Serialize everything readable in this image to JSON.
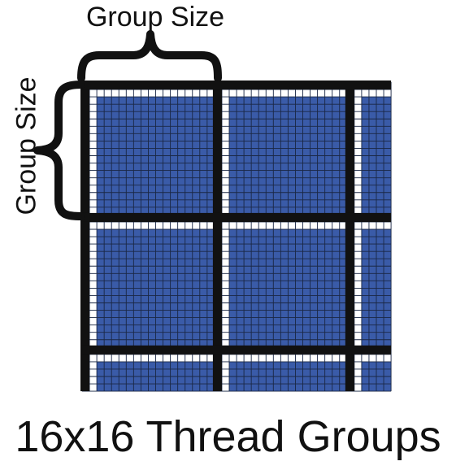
{
  "labels": {
    "top": "Group Size",
    "left": "Group Size",
    "caption": "16x16 Thread Groups"
  },
  "grid": {
    "columns": 42,
    "rows": 42,
    "group_size": 16,
    "padding_cells": 2,
    "full_groups_x": 2,
    "full_groups_y": 2
  },
  "colors": {
    "group_fill": "#3a5ba8",
    "padding_fill": "#ffffff",
    "boundary": "#111111",
    "cell_line": "#1a2744",
    "ink": "#111111"
  }
}
